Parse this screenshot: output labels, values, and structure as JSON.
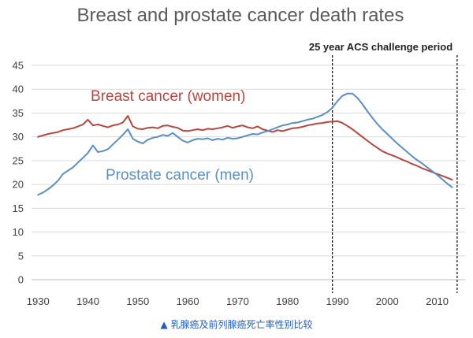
{
  "chart_data": {
    "type": "line",
    "title": "Breast and prostate cancer death rates",
    "annotation": "25 year ACS challenge period",
    "highlight_period": [
      1989,
      2014
    ],
    "xlim": [
      1928.7,
      2015.6
    ],
    "ylim": [
      0,
      45
    ],
    "xticks": [
      1930,
      1940,
      1950,
      1960,
      1970,
      1980,
      1990,
      2000,
      2010
    ],
    "yticks": [
      0,
      5,
      10,
      15,
      20,
      25,
      30,
      35,
      40,
      45
    ],
    "xlabel": "",
    "ylabel": "",
    "grid": true,
    "legend": "inline",
    "series": [
      {
        "name": "Breast cancer (women)",
        "color": "#b8453f",
        "points": [
          [
            1930,
            30.0
          ],
          [
            1931,
            30.3
          ],
          [
            1932,
            30.6
          ],
          [
            1933,
            30.8
          ],
          [
            1934,
            31.0
          ],
          [
            1935,
            31.4
          ],
          [
            1936,
            31.6
          ],
          [
            1937,
            31.8
          ],
          [
            1938,
            32.2
          ],
          [
            1939,
            32.6
          ],
          [
            1940,
            33.6
          ],
          [
            1941,
            32.4
          ],
          [
            1942,
            32.6
          ],
          [
            1943,
            32.3
          ],
          [
            1944,
            32.0
          ],
          [
            1945,
            32.4
          ],
          [
            1946,
            32.6
          ],
          [
            1947,
            33.0
          ],
          [
            1948,
            34.4
          ],
          [
            1949,
            32.2
          ],
          [
            1950,
            31.7
          ],
          [
            1951,
            31.6
          ],
          [
            1952,
            31.9
          ],
          [
            1953,
            32.0
          ],
          [
            1954,
            31.8
          ],
          [
            1955,
            32.3
          ],
          [
            1956,
            32.4
          ],
          [
            1957,
            32.1
          ],
          [
            1958,
            31.9
          ],
          [
            1959,
            31.3
          ],
          [
            1960,
            31.2
          ],
          [
            1961,
            31.4
          ],
          [
            1962,
            31.6
          ],
          [
            1963,
            31.4
          ],
          [
            1964,
            31.7
          ],
          [
            1965,
            31.6
          ],
          [
            1966,
            31.8
          ],
          [
            1967,
            32.0
          ],
          [
            1968,
            32.3
          ],
          [
            1969,
            31.9
          ],
          [
            1970,
            32.2
          ],
          [
            1971,
            32.4
          ],
          [
            1972,
            32.0
          ],
          [
            1973,
            31.8
          ],
          [
            1974,
            32.2
          ],
          [
            1975,
            31.6
          ],
          [
            1976,
            31.3
          ],
          [
            1977,
            31.0
          ],
          [
            1978,
            31.4
          ],
          [
            1979,
            31.2
          ],
          [
            1980,
            31.5
          ],
          [
            1981,
            31.8
          ],
          [
            1982,
            31.9
          ],
          [
            1983,
            32.1
          ],
          [
            1984,
            32.4
          ],
          [
            1985,
            32.6
          ],
          [
            1986,
            32.8
          ],
          [
            1987,
            32.9
          ],
          [
            1988,
            33.1
          ],
          [
            1989,
            33.2
          ],
          [
            1990,
            33.3
          ],
          [
            1991,
            32.9
          ],
          [
            1992,
            32.3
          ],
          [
            1993,
            31.6
          ],
          [
            1994,
            30.8
          ],
          [
            1995,
            30.0
          ],
          [
            1996,
            29.2
          ],
          [
            1997,
            28.4
          ],
          [
            1998,
            27.7
          ],
          [
            1999,
            27.0
          ],
          [
            2000,
            26.5
          ],
          [
            2001,
            26.1
          ],
          [
            2002,
            25.7
          ],
          [
            2003,
            25.2
          ],
          [
            2004,
            24.8
          ],
          [
            2005,
            24.3
          ],
          [
            2006,
            23.9
          ],
          [
            2007,
            23.4
          ],
          [
            2008,
            23.0
          ],
          [
            2009,
            22.6
          ],
          [
            2010,
            22.2
          ],
          [
            2011,
            21.8
          ],
          [
            2012,
            21.4
          ],
          [
            2013,
            21.0
          ]
        ]
      },
      {
        "name": "Prostate cancer (men)",
        "color": "#5a8ec6",
        "points": [
          [
            1930,
            17.8
          ],
          [
            1931,
            18.3
          ],
          [
            1932,
            19.0
          ],
          [
            1933,
            19.8
          ],
          [
            1934,
            20.8
          ],
          [
            1935,
            22.2
          ],
          [
            1936,
            22.9
          ],
          [
            1937,
            23.6
          ],
          [
            1938,
            24.6
          ],
          [
            1939,
            25.6
          ],
          [
            1940,
            26.6
          ],
          [
            1941,
            28.2
          ],
          [
            1942,
            26.8
          ],
          [
            1943,
            27.0
          ],
          [
            1944,
            27.4
          ],
          [
            1945,
            28.4
          ],
          [
            1946,
            29.4
          ],
          [
            1947,
            30.4
          ],
          [
            1948,
            31.6
          ],
          [
            1949,
            29.6
          ],
          [
            1950,
            29.0
          ],
          [
            1951,
            28.6
          ],
          [
            1952,
            29.4
          ],
          [
            1953,
            29.8
          ],
          [
            1954,
            30.0
          ],
          [
            1955,
            30.4
          ],
          [
            1956,
            30.2
          ],
          [
            1957,
            30.8
          ],
          [
            1958,
            30.0
          ],
          [
            1959,
            29.2
          ],
          [
            1960,
            28.8
          ],
          [
            1961,
            29.3
          ],
          [
            1962,
            29.6
          ],
          [
            1963,
            29.5
          ],
          [
            1964,
            29.7
          ],
          [
            1965,
            29.3
          ],
          [
            1966,
            29.6
          ],
          [
            1967,
            29.4
          ],
          [
            1968,
            29.8
          ],
          [
            1969,
            29.6
          ],
          [
            1970,
            29.7
          ],
          [
            1971,
            30.0
          ],
          [
            1972,
            30.3
          ],
          [
            1973,
            30.6
          ],
          [
            1974,
            30.5
          ],
          [
            1975,
            30.9
          ],
          [
            1976,
            31.2
          ],
          [
            1977,
            31.6
          ],
          [
            1978,
            32.0
          ],
          [
            1979,
            32.4
          ],
          [
            1980,
            32.6
          ],
          [
            1981,
            32.9
          ],
          [
            1982,
            33.0
          ],
          [
            1983,
            33.3
          ],
          [
            1984,
            33.6
          ],
          [
            1985,
            33.8
          ],
          [
            1986,
            34.2
          ],
          [
            1987,
            34.6
          ],
          [
            1988,
            35.2
          ],
          [
            1989,
            36.1
          ],
          [
            1990,
            37.5
          ],
          [
            1991,
            38.6
          ],
          [
            1992,
            39.1
          ],
          [
            1993,
            39.1
          ],
          [
            1994,
            38.2
          ],
          [
            1995,
            36.9
          ],
          [
            1996,
            35.4
          ],
          [
            1997,
            34.0
          ],
          [
            1998,
            32.7
          ],
          [
            1999,
            31.6
          ],
          [
            2000,
            30.6
          ],
          [
            2001,
            29.6
          ],
          [
            2002,
            28.6
          ],
          [
            2003,
            27.7
          ],
          [
            2004,
            26.8
          ],
          [
            2005,
            25.9
          ],
          [
            2006,
            25.1
          ],
          [
            2007,
            24.4
          ],
          [
            2008,
            23.6
          ],
          [
            2009,
            22.8
          ],
          [
            2010,
            22.0
          ],
          [
            2011,
            21.1
          ],
          [
            2012,
            20.2
          ],
          [
            2013,
            19.4
          ]
        ]
      }
    ]
  },
  "caption": "▲ 乳腺癌及前列腺癌死亡率性别比较"
}
